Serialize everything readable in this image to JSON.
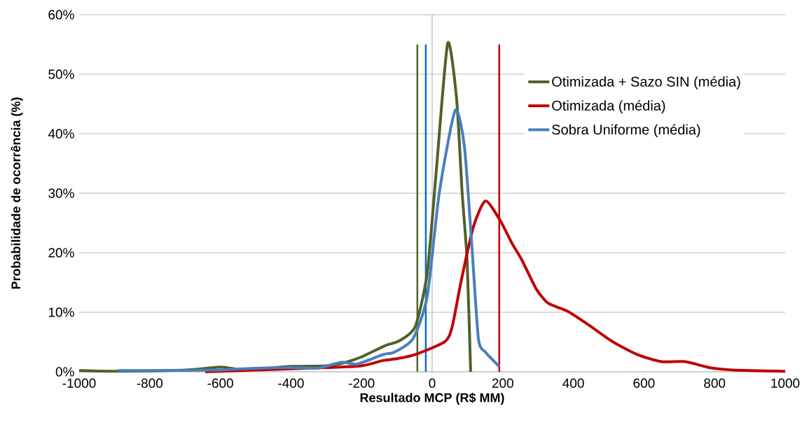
{
  "chart_data": {
    "type": "line",
    "xlabel": "Resultado MCP (R$ MM)",
    "ylabel": "Probabilidade de ocorrência (%)",
    "xlim": [
      -1000,
      1000
    ],
    "xticks": [
      -1000,
      -800,
      -600,
      -400,
      -200,
      0,
      200,
      400,
      600,
      800,
      1000
    ],
    "ylim": [
      0,
      60
    ],
    "yticks": [
      {
        "value": 0,
        "label": "0%"
      },
      {
        "value": 10,
        "label": "10%"
      },
      {
        "value": 20,
        "label": "20%"
      },
      {
        "value": 30,
        "label": "30%"
      },
      {
        "value": 40,
        "label": "40%"
      },
      {
        "value": 50,
        "label": "50%"
      },
      {
        "value": 60,
        "label": "60%"
      }
    ],
    "grid": "y",
    "legend": "right",
    "ref_lines": [
      {
        "axis": "x",
        "value": 0,
        "color": "#a6a6a6"
      }
    ],
    "series": [
      {
        "name": "Otimizada + Sazo SIN (média)",
        "color": "#4f6228",
        "x": [
          -1000,
          -900,
          -800,
          -700,
          -600,
          -550,
          -500,
          -400,
          -300,
          -250,
          -200,
          -133,
          -93,
          -48,
          -14,
          12,
          44,
          69,
          85,
          99,
          109
        ],
        "values": [
          0.2,
          0.1,
          null,
          0.3,
          0.8,
          0.4,
          0.4,
          0.9,
          1.0,
          1.5,
          2.5,
          4.4,
          5.2,
          7.6,
          16.6,
          34,
          55.2,
          46,
          30,
          18.6,
          0
        ]
      },
      {
        "name": "Otimizada (média)",
        "color": "#c00000",
        "x": [
          -643,
          -500,
          -400,
          -300,
          -200,
          -139,
          -100,
          -48,
          35,
          56,
          83,
          117,
          151,
          192,
          226,
          254,
          295,
          329,
          383,
          445,
          513,
          581,
          649,
          717,
          785,
          853,
          1000
        ],
        "values": [
          0,
          0.3,
          0.5,
          0.7,
          1.0,
          1.9,
          2.2,
          2.9,
          5.0,
          7.4,
          15.5,
          24.4,
          28.7,
          25.5,
          21.6,
          18.8,
          13.9,
          11.5,
          10.2,
          7.8,
          5.0,
          2.9,
          1.7,
          1.7,
          0.7,
          0.3,
          0.1
        ]
      },
      {
        "name": "Sobra Uniforme (média)",
        "color": "#4a7ebb",
        "x": [
          -891,
          -800,
          -600,
          -500,
          -400,
          -325,
          -258,
          -212,
          -139,
          -107,
          -54,
          -14,
          20,
          65,
          91,
          111,
          131,
          151,
          190
        ],
        "values": [
          0.2,
          0.2,
          0.3,
          0.6,
          0.7,
          0.6,
          1.6,
          1.3,
          2.9,
          3.3,
          5.6,
          12.7,
          30,
          43.9,
          38,
          22.4,
          5.6,
          3.3,
          0.9
        ]
      },
      {
        "color": "#4f6228",
        "x": [
          -42,
          -42
        ],
        "values": [
          0,
          55
        ]
      },
      {
        "color": "#0070c0",
        "x": [
          -18,
          -18
        ],
        "values": [
          0,
          55
        ]
      },
      {
        "color": "#c00000",
        "x": [
          190,
          190
        ],
        "values": [
          0,
          55
        ]
      }
    ]
  }
}
